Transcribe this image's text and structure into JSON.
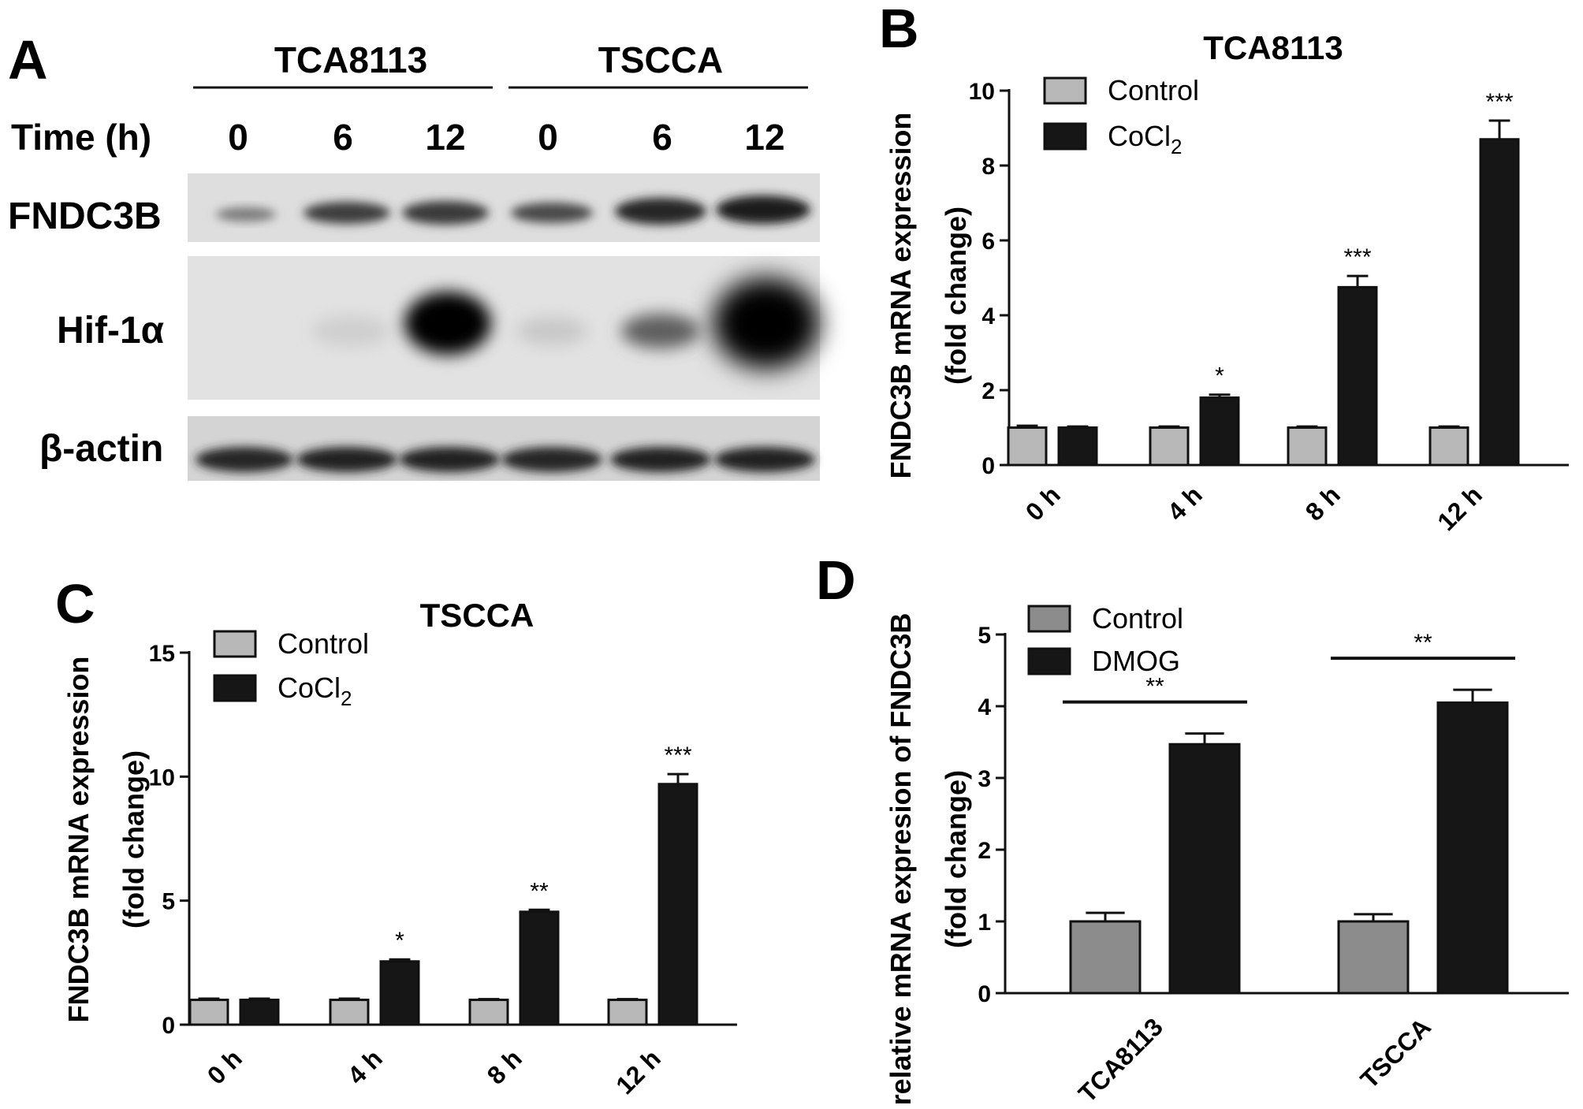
{
  "panel_a": {
    "letter": "A",
    "group1": "TCA8113",
    "group2": "TSCCA",
    "time_label": "Time (h)",
    "times": [
      "0",
      "6",
      "12",
      "0",
      "6",
      "12"
    ],
    "rows": [
      "FNDC3B",
      "Hif-1α",
      "β-actin"
    ]
  },
  "chart_data": [
    {
      "letter": "B",
      "type": "bar",
      "title": "TCA8113",
      "ylabel_line1": "FNDC3B mRNA expression",
      "ylabel_line2": "(fold change)",
      "categories": [
        "0 h",
        "4 h",
        "8 h",
        "12 h"
      ],
      "ylim": [
        0,
        10
      ],
      "yticks": [
        0,
        2,
        4,
        6,
        8,
        10
      ],
      "legend_position": "top-left",
      "series": [
        {
          "name": "Control",
          "color": "#b8b8b8",
          "values": [
            1.0,
            1.0,
            1.0,
            1.0
          ],
          "errors": [
            0.05,
            0.03,
            0.03,
            0.03
          ]
        },
        {
          "name": "CoCl2",
          "color": "#161616",
          "values": [
            1.0,
            1.8,
            4.75,
            8.7
          ],
          "errors": [
            0.03,
            0.08,
            0.3,
            0.5
          ]
        }
      ],
      "significance": [
        "",
        "*",
        "***",
        "***"
      ]
    },
    {
      "letter": "C",
      "type": "bar",
      "title": "TSCCA",
      "ylabel_line1": "FNDC3B mRNA expression",
      "ylabel_line2": "(fold change)",
      "categories": [
        "0 h",
        "4 h",
        "8 h",
        "12 h"
      ],
      "ylim": [
        0,
        15
      ],
      "yticks": [
        0,
        5,
        10,
        15
      ],
      "legend_position": "top-left",
      "series": [
        {
          "name": "Control",
          "color": "#b8b8b8",
          "values": [
            1.0,
            1.0,
            1.0,
            1.0
          ],
          "errors": [
            0.05,
            0.05,
            0.03,
            0.03
          ]
        },
        {
          "name": "CoCl2",
          "color": "#161616",
          "values": [
            1.0,
            2.55,
            4.55,
            9.7
          ],
          "errors": [
            0.05,
            0.08,
            0.08,
            0.4
          ]
        }
      ],
      "significance": [
        "",
        "*",
        "**",
        "***"
      ]
    },
    {
      "letter": "D",
      "type": "bar",
      "title": "",
      "ylabel_line1": "relative mRNA expresion of FNDC3B",
      "ylabel_line2": "(fold change)",
      "categories": [
        "TCA8113",
        "TSCCA"
      ],
      "ylim": [
        0,
        5
      ],
      "yticks": [
        0,
        1,
        2,
        3,
        4,
        5
      ],
      "legend_position": "top-left",
      "series": [
        {
          "name": "Control",
          "color": "#8c8c8c",
          "values": [
            1.0,
            1.0
          ],
          "errors": [
            0.12,
            0.1
          ]
        },
        {
          "name": "DMOG",
          "color": "#161616",
          "values": [
            3.47,
            4.05
          ],
          "errors": [
            0.15,
            0.18
          ]
        }
      ],
      "significance": [
        "**",
        "**"
      ]
    }
  ]
}
